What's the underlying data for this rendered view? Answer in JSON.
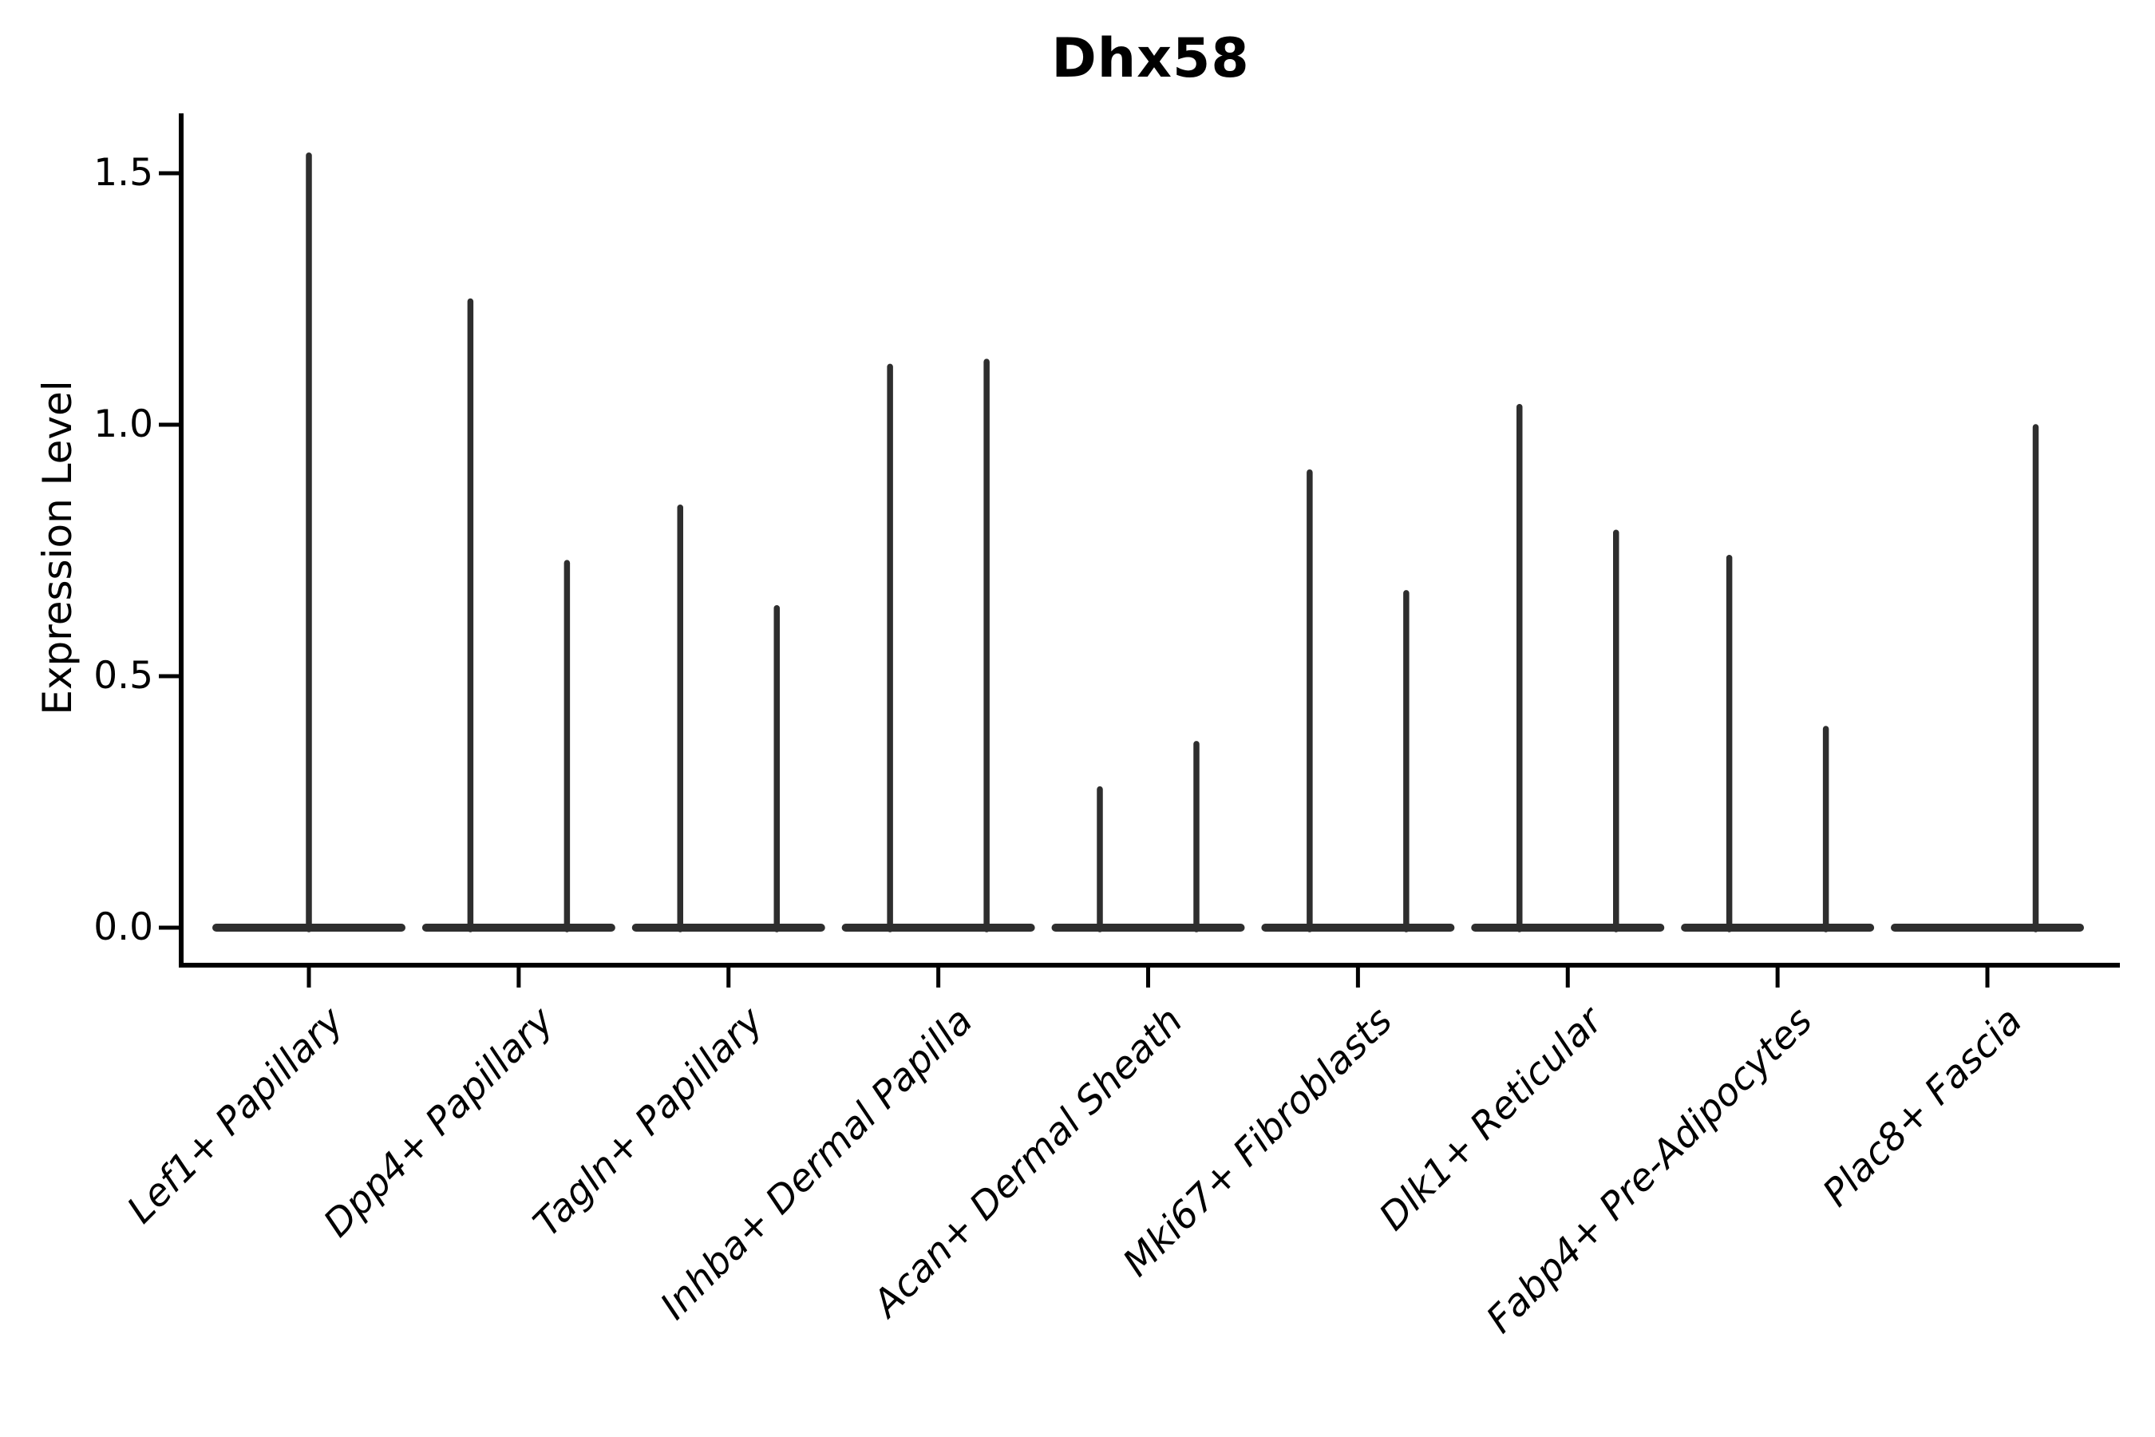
{
  "chart_data": {
    "type": "violin",
    "title": "Dhx58",
    "ylabel": "Expression Level",
    "xlabel": "",
    "grid": false,
    "legend": null,
    "ylim": [
      -0.075,
      1.62
    ],
    "yticks": [
      {
        "value": 0.0,
        "label": "0.0"
      },
      {
        "value": 0.5,
        "label": "0.5"
      },
      {
        "value": 1.0,
        "label": "1.0"
      },
      {
        "value": 1.5,
        "label": "1.5"
      }
    ],
    "categories": [
      "Lef1+ Papillary",
      "Dpp4+ Papillary",
      "Tagln+ Papillary",
      "Inhba+ Dermal Papilla",
      "Acan+ Dermal Sheath",
      "Mki67+ Fibroblasts",
      "Dlk1+ Reticular",
      "Fabp4+ Pre-Adipocytes",
      "Plac8+ Fascia"
    ],
    "violins": [
      {
        "category": "Lef1+ Papillary",
        "group": "center",
        "baseline": 0.0,
        "max": 1.54
      },
      {
        "category": "Dpp4+ Papillary",
        "group": "left",
        "baseline": 0.0,
        "max": 1.25
      },
      {
        "category": "Dpp4+ Papillary",
        "group": "right",
        "baseline": 0.0,
        "max": 0.73
      },
      {
        "category": "Tagln+ Papillary",
        "group": "left",
        "baseline": 0.0,
        "max": 0.84
      },
      {
        "category": "Tagln+ Papillary",
        "group": "right",
        "baseline": 0.0,
        "max": 0.64
      },
      {
        "category": "Inhba+ Dermal Papilla",
        "group": "left",
        "baseline": 0.0,
        "max": 1.12
      },
      {
        "category": "Inhba+ Dermal Papilla",
        "group": "right",
        "baseline": 0.0,
        "max": 1.13
      },
      {
        "category": "Acan+ Dermal Sheath",
        "group": "left",
        "baseline": 0.0,
        "max": 0.28
      },
      {
        "category": "Acan+ Dermal Sheath",
        "group": "right",
        "baseline": 0.0,
        "max": 0.37
      },
      {
        "category": "Mki67+ Fibroblasts",
        "group": "left",
        "baseline": 0.0,
        "max": 0.91
      },
      {
        "category": "Mki67+ Fibroblasts",
        "group": "right",
        "baseline": 0.0,
        "max": 0.67
      },
      {
        "category": "Dlk1+ Reticular",
        "group": "left",
        "baseline": 0.0,
        "max": 1.04
      },
      {
        "category": "Dlk1+ Reticular",
        "group": "right",
        "baseline": 0.0,
        "max": 0.79
      },
      {
        "category": "Fabp4+ Pre-Adipocytes",
        "group": "left",
        "baseline": 0.0,
        "max": 0.74
      },
      {
        "category": "Fabp4+ Pre-Adipocytes",
        "group": "right",
        "baseline": 0.0,
        "max": 0.4
      },
      {
        "category": "Plac8+ Fascia",
        "group": "left",
        "baseline": 0.0,
        "max": 0.0
      },
      {
        "category": "Plac8+ Fascia",
        "group": "right",
        "baseline": 0.0,
        "max": 1.0
      }
    ],
    "colors": {
      "violin": "#2e2e2e",
      "axis": "#000000",
      "text": "#000000"
    }
  }
}
